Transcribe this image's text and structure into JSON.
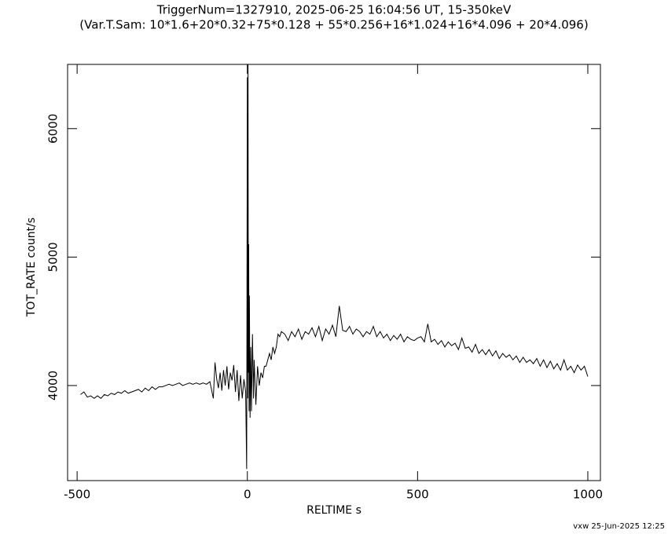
{
  "chart_data": {
    "type": "line",
    "title": "TriggerNum=1327910, 2025-06-25 16:04:56 UT, 15-350keV",
    "subtitle": "(Var.T.Sam: 10*1.6+20*0.32+75*0.128  +  55*0.256+16*1.024+16*4.096  +  20*4.096)",
    "xlabel": "RELTIME  s",
    "ylabel": "TOT_RATE  count/s",
    "footer": "vxw 25-Jun-2025 12:25",
    "xlim": [
      -528,
      1037
    ],
    "ylim": [
      3260,
      6500
    ],
    "xticks": [
      -500,
      0,
      500,
      1000
    ],
    "yticks": [
      4000,
      5000,
      6000
    ],
    "series": [
      {
        "name": "TOT_RATE",
        "color": "#000000",
        "x": [
          -490,
          -480,
          -470,
          -460,
          -450,
          -440,
          -430,
          -420,
          -410,
          -400,
          -390,
          -380,
          -370,
          -360,
          -350,
          -340,
          -330,
          -320,
          -310,
          -300,
          -290,
          -280,
          -270,
          -260,
          -250,
          -240,
          -230,
          -220,
          -210,
          -200,
          -190,
          -180,
          -170,
          -160,
          -150,
          -140,
          -130,
          -120,
          -110,
          -100,
          -95,
          -90,
          -85,
          -80,
          -75,
          -70,
          -65,
          -60,
          -55,
          -50,
          -45,
          -40,
          -35,
          -30,
          -25,
          -20,
          -15,
          -10,
          -5,
          -2,
          0,
          1,
          2,
          3,
          4,
          5,
          6,
          8,
          10,
          12,
          15,
          18,
          20,
          25,
          30,
          35,
          40,
          45,
          50,
          55,
          60,
          65,
          70,
          75,
          80,
          85,
          90,
          95,
          100,
          110,
          120,
          130,
          140,
          150,
          160,
          170,
          180,
          190,
          200,
          210,
          220,
          230,
          240,
          250,
          260,
          270,
          280,
          290,
          300,
          310,
          320,
          330,
          340,
          350,
          360,
          370,
          380,
          390,
          400,
          410,
          420,
          430,
          440,
          450,
          460,
          470,
          480,
          490,
          500,
          510,
          520,
          530,
          540,
          550,
          560,
          570,
          580,
          590,
          600,
          610,
          620,
          630,
          640,
          650,
          660,
          670,
          680,
          690,
          700,
          710,
          720,
          730,
          740,
          750,
          760,
          770,
          780,
          790,
          800,
          810,
          820,
          830,
          840,
          850,
          860,
          870,
          880,
          890,
          900,
          910,
          920,
          930,
          940,
          950,
          960,
          970,
          980,
          990,
          1000
        ],
        "values": [
          3930,
          3950,
          3910,
          3920,
          3900,
          3920,
          3900,
          3930,
          3920,
          3940,
          3930,
          3950,
          3940,
          3960,
          3940,
          3950,
          3960,
          3970,
          3950,
          3980,
          3960,
          3990,
          3970,
          3990,
          3990,
          4000,
          4010,
          4000,
          4010,
          4020,
          4000,
          4010,
          4020,
          4010,
          4020,
          4010,
          4020,
          4010,
          4030,
          3900,
          4180,
          4050,
          3980,
          4100,
          3960,
          4120,
          4000,
          4150,
          3970,
          4100,
          4040,
          4160,
          3950,
          4120,
          3880,
          4080,
          3900,
          4050,
          3950,
          3350,
          6400,
          3900,
          6500,
          4100,
          5100,
          3800,
          4700,
          3750,
          4300,
          3800,
          4400,
          3900,
          4200,
          3850,
          4150,
          4000,
          4100,
          4060,
          4150,
          4150,
          4200,
          4250,
          4200,
          4300,
          4250,
          4300,
          4400,
          4380,
          4420,
          4400,
          4350,
          4420,
          4380,
          4440,
          4360,
          4420,
          4400,
          4450,
          4380,
          4460,
          4350,
          4440,
          4400,
          4470,
          4380,
          4620,
          4430,
          4420,
          4460,
          4400,
          4440,
          4420,
          4380,
          4420,
          4400,
          4460,
          4380,
          4420,
          4370,
          4400,
          4350,
          4390,
          4360,
          4400,
          4340,
          4380,
          4360,
          4350,
          4370,
          4380,
          4340,
          4480,
          4340,
          4360,
          4320,
          4350,
          4300,
          4340,
          4310,
          4330,
          4280,
          4370,
          4290,
          4300,
          4260,
          4320,
          4250,
          4280,
          4240,
          4280,
          4230,
          4270,
          4210,
          4250,
          4220,
          4240,
          4200,
          4230,
          4180,
          4220,
          4180,
          4200,
          4170,
          4210,
          4150,
          4200,
          4140,
          4190,
          4130,
          4170,
          4120,
          4200,
          4120,
          4150,
          4100,
          4160,
          4120,
          4150,
          4070
        ]
      }
    ]
  }
}
